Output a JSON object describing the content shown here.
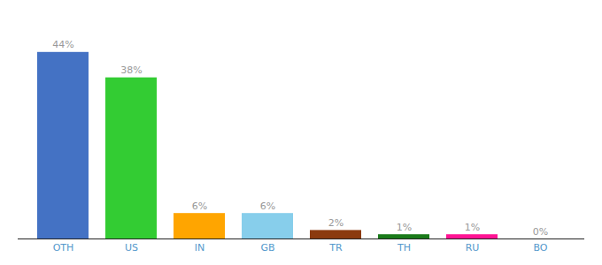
{
  "chart_data": {
    "type": "bar",
    "categories": [
      "OTH",
      "US",
      "IN",
      "GB",
      "TR",
      "TH",
      "RU",
      "BO"
    ],
    "values": [
      44,
      38,
      6,
      6,
      2,
      1,
      1,
      0
    ],
    "value_labels": [
      "44%",
      "38%",
      "6%",
      "6%",
      "2%",
      "1%",
      "1%",
      "0%"
    ],
    "colors": [
      "#4472C4",
      "#33CC33",
      "#FFA500",
      "#87CEEB",
      "#8B3A0F",
      "#1A7A1A",
      "#FF1493",
      "#C0C0C0"
    ],
    "ylim": [
      0,
      50
    ],
    "grid": false,
    "data_labels": true,
    "tick_labels": "x"
  }
}
